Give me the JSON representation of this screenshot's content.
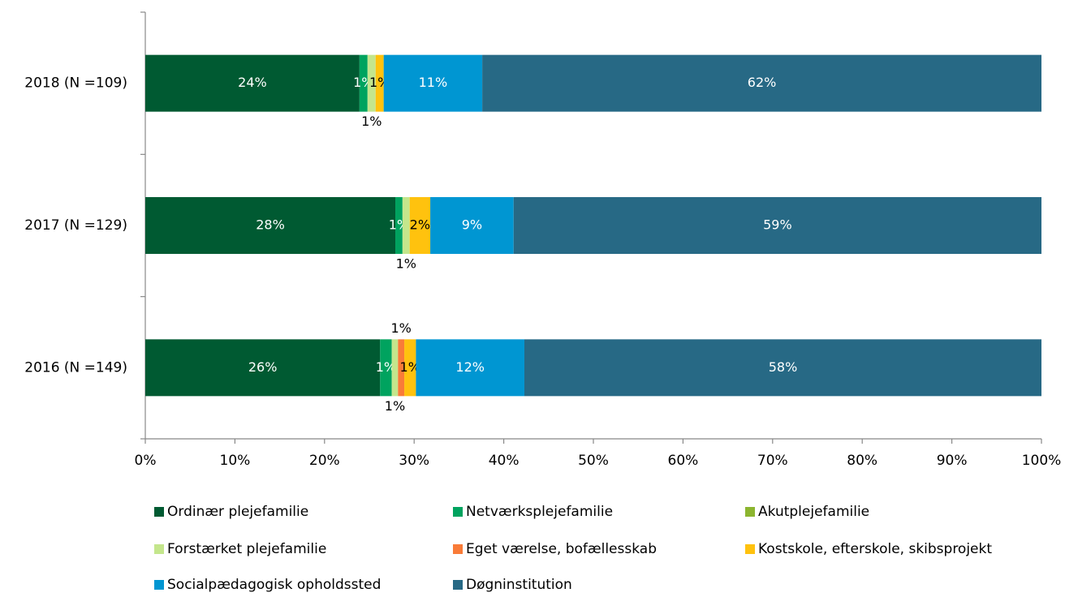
{
  "chart_data": {
    "type": "stacked_bar_horizontal",
    "categories": [
      "2018 (N =109)",
      "2017 (N =129)",
      "2016 (N =149)"
    ],
    "series": [
      {
        "name": "Ordinær plejefamilie",
        "color": "#005a32",
        "values": [
          23.9,
          27.9,
          26.2
        ],
        "value_labels": [
          "24%",
          "28%",
          "26%"
        ]
      },
      {
        "name": "Netværksplejefamilie",
        "color": "#00a35f",
        "values": [
          0.9,
          0.8,
          1.3
        ],
        "value_labels": [
          "1%",
          "1%",
          "1%"
        ]
      },
      {
        "name": "Akutplejefamilie",
        "color": "#8cb52f",
        "values": [
          0,
          0,
          0
        ],
        "value_labels": [
          null,
          null,
          null
        ]
      },
      {
        "name": "Forstærket plejefamilie",
        "color": "#c4e68c",
        "values": [
          0.9,
          0.8,
          0.7
        ],
        "value_labels": [
          "1%",
          "1%",
          "1%"
        ]
      },
      {
        "name": "Eget værelse, bofællesskab",
        "color": "#f97b38",
        "values": [
          0,
          0,
          0.7
        ],
        "value_labels": [
          null,
          null,
          "1%"
        ]
      },
      {
        "name": "Kostskole, efterskole, skibsprojekt",
        "color": "#ffc20e",
        "values": [
          0.9,
          2.3,
          1.3
        ],
        "value_labels": [
          "1%",
          "2%",
          "1%"
        ]
      },
      {
        "name": "Socialpædagogisk opholdssted",
        "color": "#0096d2",
        "values": [
          11.0,
          9.3,
          12.1
        ],
        "value_labels": [
          "11%",
          "9%",
          "12%"
        ]
      },
      {
        "name": "Døgninstitution",
        "color": "#276985",
        "values": [
          62.4,
          58.9,
          57.7
        ],
        "value_labels": [
          "62%",
          "59%",
          "58%"
        ]
      }
    ],
    "xlim": [
      0,
      100
    ],
    "xticks": [
      {
        "value": 0,
        "label": "0%"
      },
      {
        "value": 10,
        "label": "10%"
      },
      {
        "value": 20,
        "label": "20%"
      },
      {
        "value": 30,
        "label": "30%"
      },
      {
        "value": 40,
        "label": "40%"
      },
      {
        "value": 50,
        "label": "50%"
      },
      {
        "value": 60,
        "label": "60%"
      },
      {
        "value": 70,
        "label": "70%"
      },
      {
        "value": 80,
        "label": "80%"
      },
      {
        "value": 90,
        "label": "90%"
      },
      {
        "value": 100,
        "label": "100%"
      }
    ],
    "grid": false,
    "legend": "bottom"
  }
}
